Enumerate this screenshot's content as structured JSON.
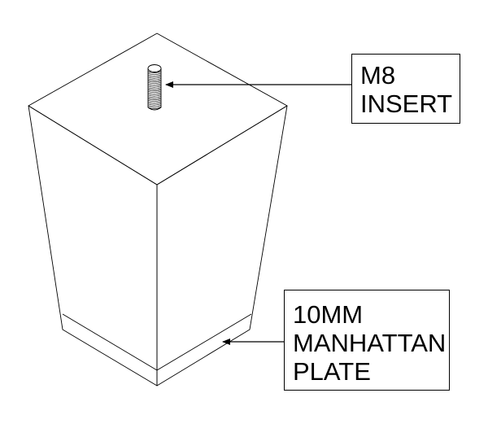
{
  "diagram": {
    "labels": {
      "insert": {
        "line1": "M8",
        "line2": "INSERT"
      },
      "plate": {
        "line1": "10MM",
        "line2": "MANHATTAN",
        "line3": "PLATE"
      }
    },
    "colors": {
      "stroke": "#000000",
      "fill": "#ffffff"
    }
  }
}
